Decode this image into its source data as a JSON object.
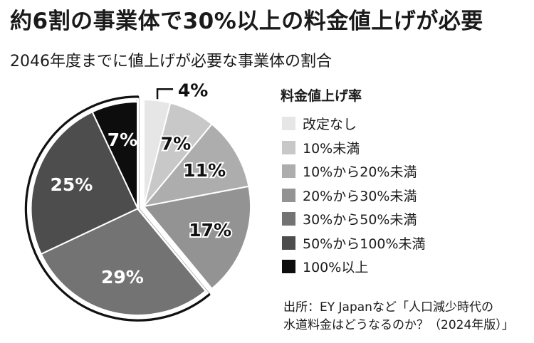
{
  "title": "約6割の事業体で30%以上の料金値上げが必要",
  "subtitle": "2046年度までに値上げが必要な事業体の割合",
  "chart_data": {
    "type": "pie",
    "legend_title": "料金値上げ率",
    "legend_position": "right",
    "start": "12 o'clock, clockwise",
    "highlighted": [
      "30%から50%未満",
      "50%から100%未満",
      "100%以上"
    ],
    "slices": [
      {
        "label": "改定なし",
        "value": 4,
        "display": "4%",
        "color": "#e6e6e6"
      },
      {
        "label": "10%未満",
        "value": 7,
        "display": "7%",
        "color": "#c8c8c8"
      },
      {
        "label": "10%から20%未満",
        "value": 11,
        "display": "11%",
        "color": "#adadad"
      },
      {
        "label": "20%から30%未満",
        "value": 17,
        "display": "17%",
        "color": "#939393"
      },
      {
        "label": "30%から50%未満",
        "value": 29,
        "display": "29%",
        "color": "#737373"
      },
      {
        "label": "50%から100%未満",
        "value": 25,
        "display": "25%",
        "color": "#4d4d4d"
      },
      {
        "label": "100%以上",
        "value": 7,
        "display": "7%",
        "color": "#0d0d0d"
      }
    ]
  },
  "source": {
    "line1": "出所：EY Japanなど「人口減少時代の",
    "line2": "水道料金はどうなるのか？（2024年版）」"
  }
}
